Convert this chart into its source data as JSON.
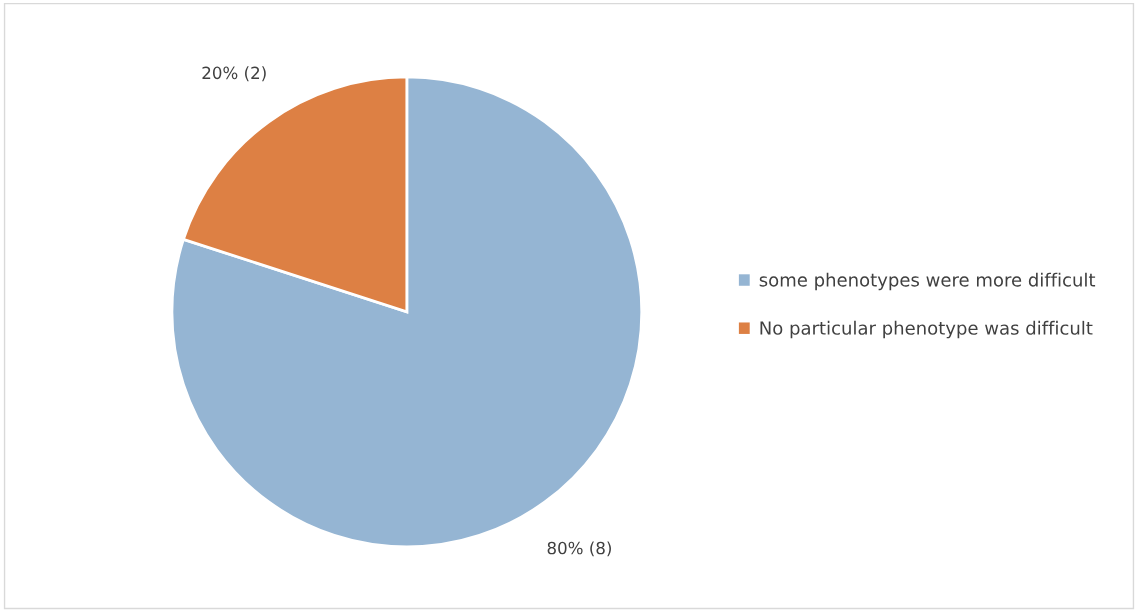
{
  "chart_data": {
    "type": "pie",
    "categories": [
      "some phenotypes were more difficult",
      "No particular phenotype was difficult"
    ],
    "values": [
      8,
      2
    ],
    "colors": [
      "#95b5d3",
      "#dd8044"
    ],
    "value_labels": [
      "80% (8)",
      "20% (2)"
    ],
    "legend": "right"
  }
}
